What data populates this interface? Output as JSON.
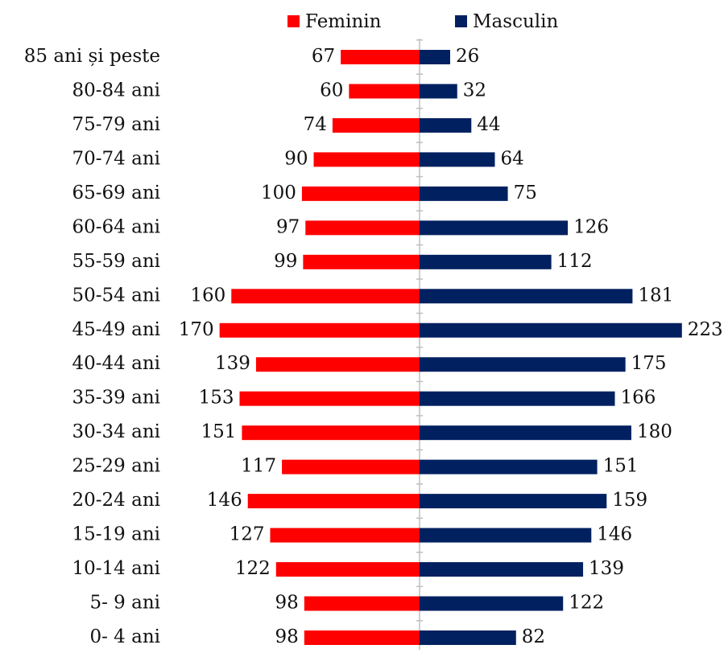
{
  "chart_data": {
    "type": "pyramid",
    "categories": [
      "85 ani și peste",
      "80-84 ani",
      "75-79 ani",
      "70-74 ani",
      "65-69 ani",
      "60-64 ani",
      "55-59 ani",
      "50-54 ani",
      "45-49 ani",
      "40-44 ani",
      "35-39 ani",
      "30-34 ani",
      "25-29 ani",
      "20-24 ani",
      "15-19 ani",
      "10-14 ani",
      "5- 9 ani",
      "0- 4 ani"
    ],
    "series": [
      {
        "name": "Feminin",
        "color": "#ff0000",
        "values": [
          67,
          60,
          74,
          90,
          100,
          97,
          99,
          160,
          170,
          139,
          153,
          151,
          117,
          146,
          127,
          122,
          98,
          98
        ]
      },
      {
        "name": "Masculin",
        "color": "#002060",
        "values": [
          26,
          32,
          44,
          64,
          75,
          126,
          112,
          181,
          223,
          175,
          166,
          180,
          151,
          159,
          146,
          139,
          122,
          82
        ]
      }
    ],
    "xlim": [
      0,
      230
    ],
    "legend": "top"
  }
}
